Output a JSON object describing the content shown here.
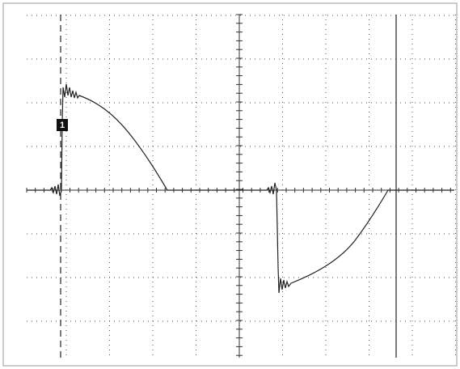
{
  "marker": "1"
}
